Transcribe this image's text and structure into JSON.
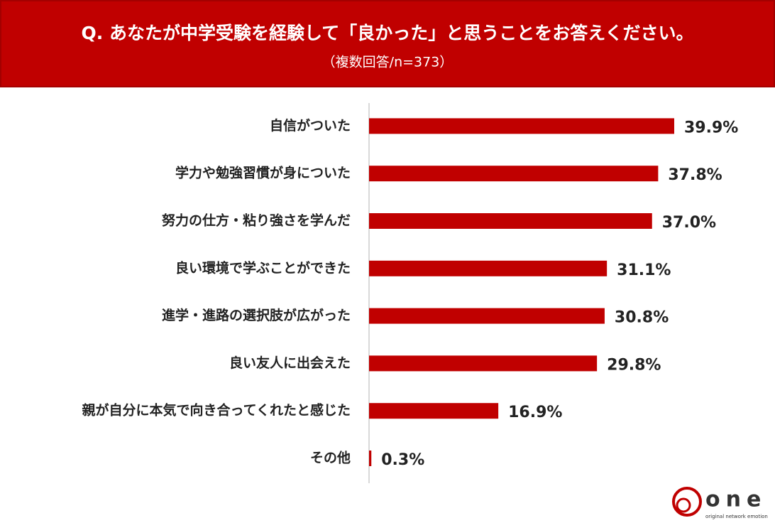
{
  "chart_data": {
    "type": "bar",
    "orientation": "horizontal",
    "title": "Q. あなたが中学受験を経験して「良かった」と思うことをお答えください。",
    "subtitle": "（複数回答/n=373）",
    "categories": [
      "自信がついた",
      "学力や勉強習慣が身についた",
      "努力の仕方・粘り強さを学んだ",
      "良い環境で学ぶことができた",
      "進学・進路の選択肢が広がった",
      "良い友人に出会えた",
      "親が自分に本気で向き合ってくれたと感じた",
      "その他"
    ],
    "values": [
      39.9,
      37.8,
      37.0,
      31.1,
      30.8,
      29.8,
      16.9,
      0.3
    ],
    "value_labels": [
      "39.9%",
      "37.8%",
      "37.0%",
      "31.1%",
      "30.8%",
      "29.8%",
      "16.9%",
      "0.3%"
    ],
    "color": "#c00000"
  },
  "logo": {
    "name": "one",
    "tagline": "original network emotion"
  }
}
